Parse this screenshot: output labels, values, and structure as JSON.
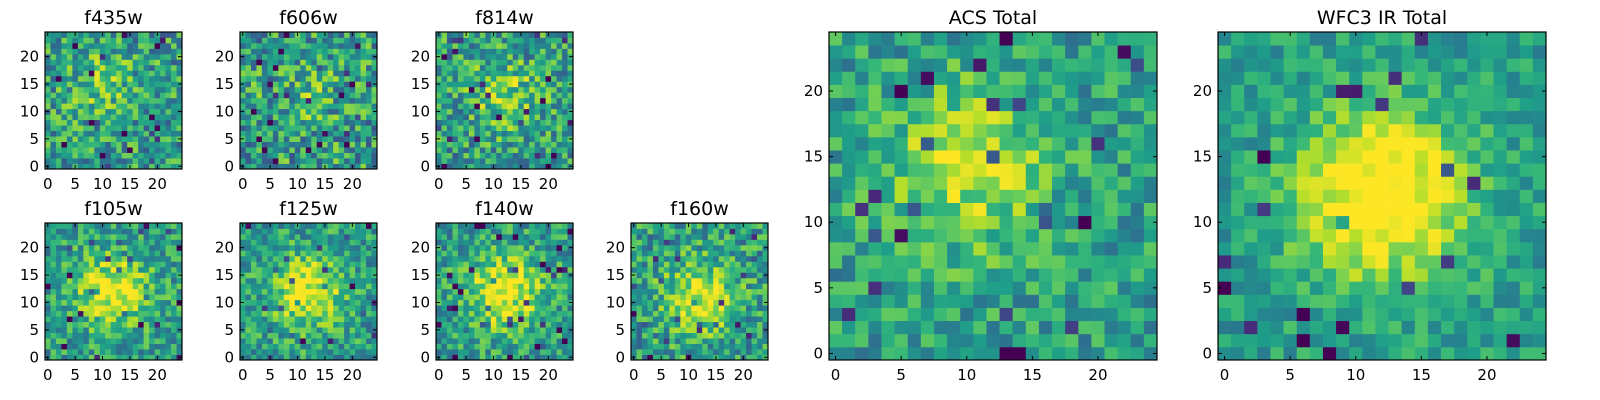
{
  "chart_data": [
    {
      "type": "heatmap",
      "title": "f435w",
      "xticks": [
        "0",
        "5",
        "10",
        "15",
        "20"
      ],
      "yticks": [
        "0",
        "5",
        "10",
        "15",
        "20"
      ],
      "xlim": [
        -0.5,
        24.5
      ],
      "ylim": [
        -0.5,
        24.5
      ],
      "grid": false,
      "colormap": "viridis",
      "seed": 11,
      "peak": [
        10,
        15
      ],
      "peak_strength": 0.18,
      "noise": 0.55
    },
    {
      "type": "heatmap",
      "title": "f606w",
      "xticks": [
        "0",
        "5",
        "10",
        "15",
        "20"
      ],
      "yticks": [
        "0",
        "5",
        "10",
        "15",
        "20"
      ],
      "xlim": [
        -0.5,
        24.5
      ],
      "ylim": [
        -0.5,
        24.5
      ],
      "grid": false,
      "colormap": "viridis",
      "seed": 23,
      "peak": [
        12,
        13
      ],
      "peak_strength": 0.12,
      "noise": 0.6
    },
    {
      "type": "heatmap",
      "title": "f814w",
      "xticks": [
        "0",
        "5",
        "10",
        "15",
        "20"
      ],
      "yticks": [
        "0",
        "5",
        "10",
        "15",
        "20"
      ],
      "xlim": [
        -0.5,
        24.5
      ],
      "ylim": [
        -0.5,
        24.5
      ],
      "grid": false,
      "colormap": "viridis",
      "seed": 37,
      "peak": [
        12,
        13
      ],
      "peak_strength": 0.25,
      "noise": 0.55
    },
    {
      "type": "heatmap",
      "title": "f105w",
      "xticks": [
        "0",
        "5",
        "10",
        "15",
        "20"
      ],
      "yticks": [
        "0",
        "5",
        "10",
        "15",
        "20"
      ],
      "xlim": [
        -0.5,
        24.5
      ],
      "ylim": [
        -0.5,
        24.5
      ],
      "grid": false,
      "colormap": "viridis",
      "seed": 41,
      "peak": [
        12,
        12
      ],
      "peak_strength": 0.45,
      "noise": 0.45
    },
    {
      "type": "heatmap",
      "title": "f125w",
      "xticks": [
        "0",
        "5",
        "10",
        "15",
        "20"
      ],
      "yticks": [
        "0",
        "5",
        "10",
        "15",
        "20"
      ],
      "xlim": [
        -0.5,
        24.5
      ],
      "ylim": [
        -0.5,
        24.5
      ],
      "grid": false,
      "colormap": "viridis",
      "seed": 53,
      "peak": [
        12,
        12
      ],
      "peak_strength": 0.45,
      "noise": 0.45
    },
    {
      "type": "heatmap",
      "title": "f140w",
      "xticks": [
        "0",
        "5",
        "10",
        "15",
        "20"
      ],
      "yticks": [
        "0",
        "5",
        "10",
        "15",
        "20"
      ],
      "xlim": [
        -0.5,
        24.5
      ],
      "ylim": [
        -0.5,
        24.5
      ],
      "grid": false,
      "colormap": "viridis",
      "seed": 67,
      "peak": [
        12,
        12
      ],
      "peak_strength": 0.5,
      "noise": 0.45
    },
    {
      "type": "heatmap",
      "title": "f160w",
      "xticks": [
        "0",
        "5",
        "10",
        "15",
        "20"
      ],
      "yticks": [
        "0",
        "5",
        "10",
        "15",
        "20"
      ],
      "xlim": [
        -0.5,
        24.5
      ],
      "ylim": [
        -0.5,
        24.5
      ],
      "grid": false,
      "colormap": "viridis",
      "seed": 79,
      "peak": [
        12,
        11
      ],
      "peak_strength": 0.4,
      "noise": 0.5
    },
    {
      "type": "heatmap",
      "title": "ACS Total",
      "xticks": [
        "0",
        "5",
        "10",
        "15",
        "20"
      ],
      "yticks": [
        "0",
        "5",
        "10",
        "15",
        "20"
      ],
      "xlim": [
        -0.5,
        24.5
      ],
      "ylim": [
        -0.5,
        24.5
      ],
      "grid": false,
      "colormap": "viridis",
      "seed": 97,
      "peak": [
        10,
        14
      ],
      "peak_strength": 0.35,
      "noise": 0.4
    },
    {
      "type": "heatmap",
      "title": "WFC3 IR Total",
      "xticks": [
        "0",
        "5",
        "10",
        "15",
        "20"
      ],
      "yticks": [
        "0",
        "5",
        "10",
        "15",
        "20"
      ],
      "xlim": [
        -0.5,
        24.5
      ],
      "ylim": [
        -0.5,
        24.5
      ],
      "grid": false,
      "colormap": "viridis",
      "seed": 113,
      "peak": [
        12,
        12
      ],
      "peak_strength": 0.6,
      "noise": 0.3
    }
  ]
}
